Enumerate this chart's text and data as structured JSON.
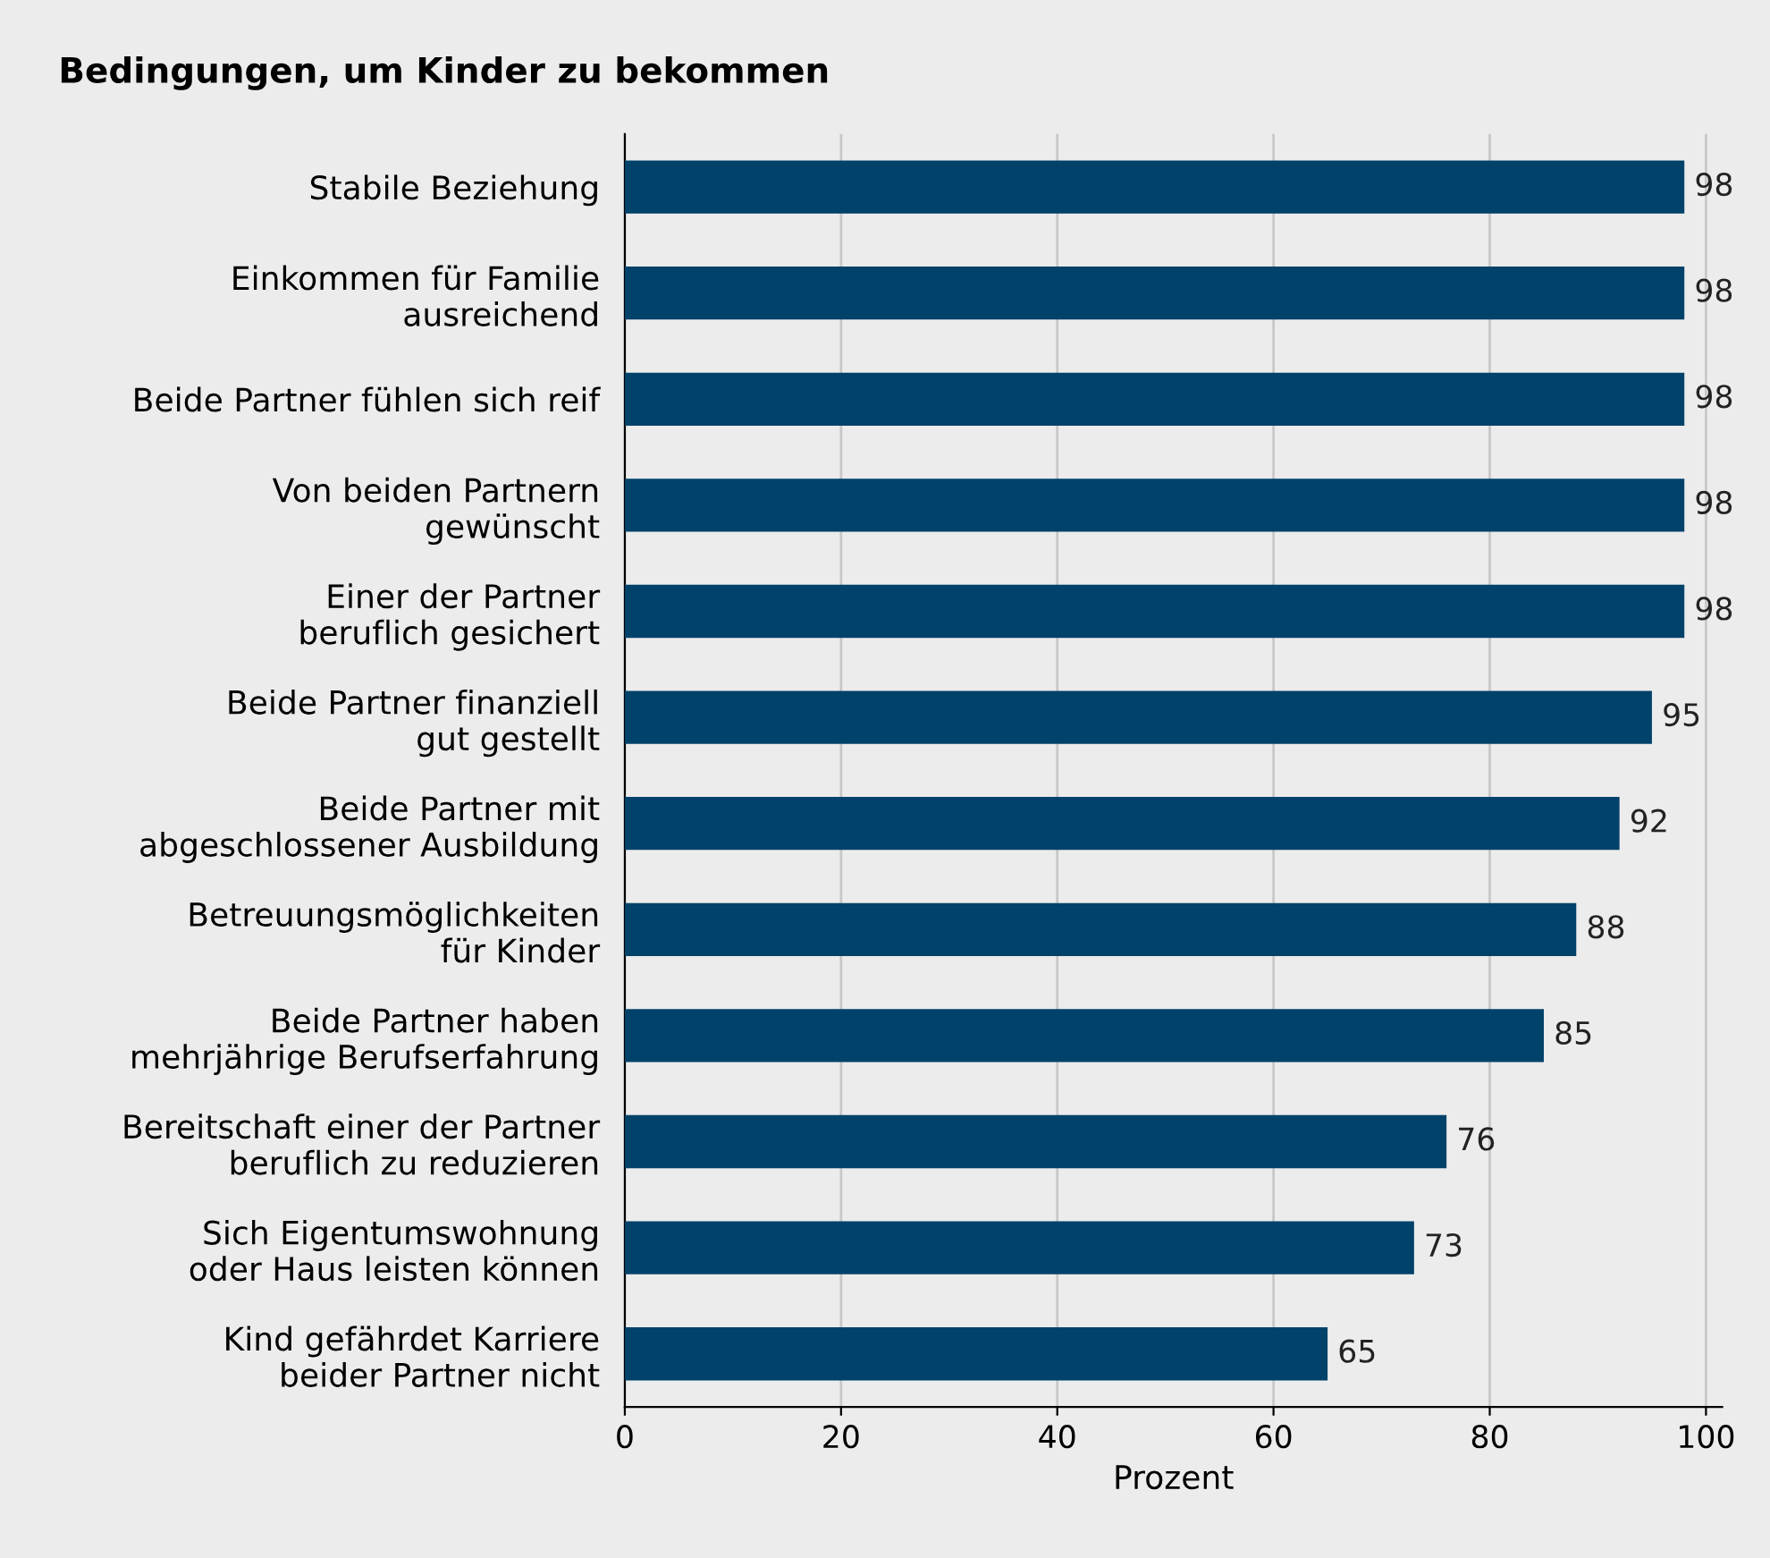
{
  "chart_data": {
    "type": "bar",
    "orientation": "horizontal",
    "title": "Bedingungen, um Kinder zu bekommen",
    "xlabel": "Prozent",
    "categories": [
      "Stabile Beziehung",
      "Einkommen für Familie\nausreichend",
      "Beide Partner fühlen sich reif",
      "Von beiden Partnern\ngewünscht",
      "Einer der Partner\nberuflich gesichert",
      "Beide Partner finanziell\ngut gestellt",
      "Beide Partner mit\nabgeschlossener Ausbildung",
      "Betreuungsmöglichkeiten\nfür Kinder",
      "Beide Partner haben\nmehrjährige Berufserfahrung",
      "Bereitschaft einer der Partner\nberuflich zu reduzieren",
      "Sich Eigentumswohnung\noder Haus leisten können",
      "Kind gefährdet Karriere\nbeider Partner nicht"
    ],
    "values": [
      98,
      98,
      98,
      98,
      98,
      95,
      92,
      88,
      85,
      76,
      73,
      65
    ],
    "color": "#00426a",
    "xlim": [
      0,
      101.5
    ],
    "xticks": [
      0,
      20,
      40,
      60,
      80,
      100
    ],
    "grid": "x",
    "data_labels": true,
    "legend": false
  }
}
